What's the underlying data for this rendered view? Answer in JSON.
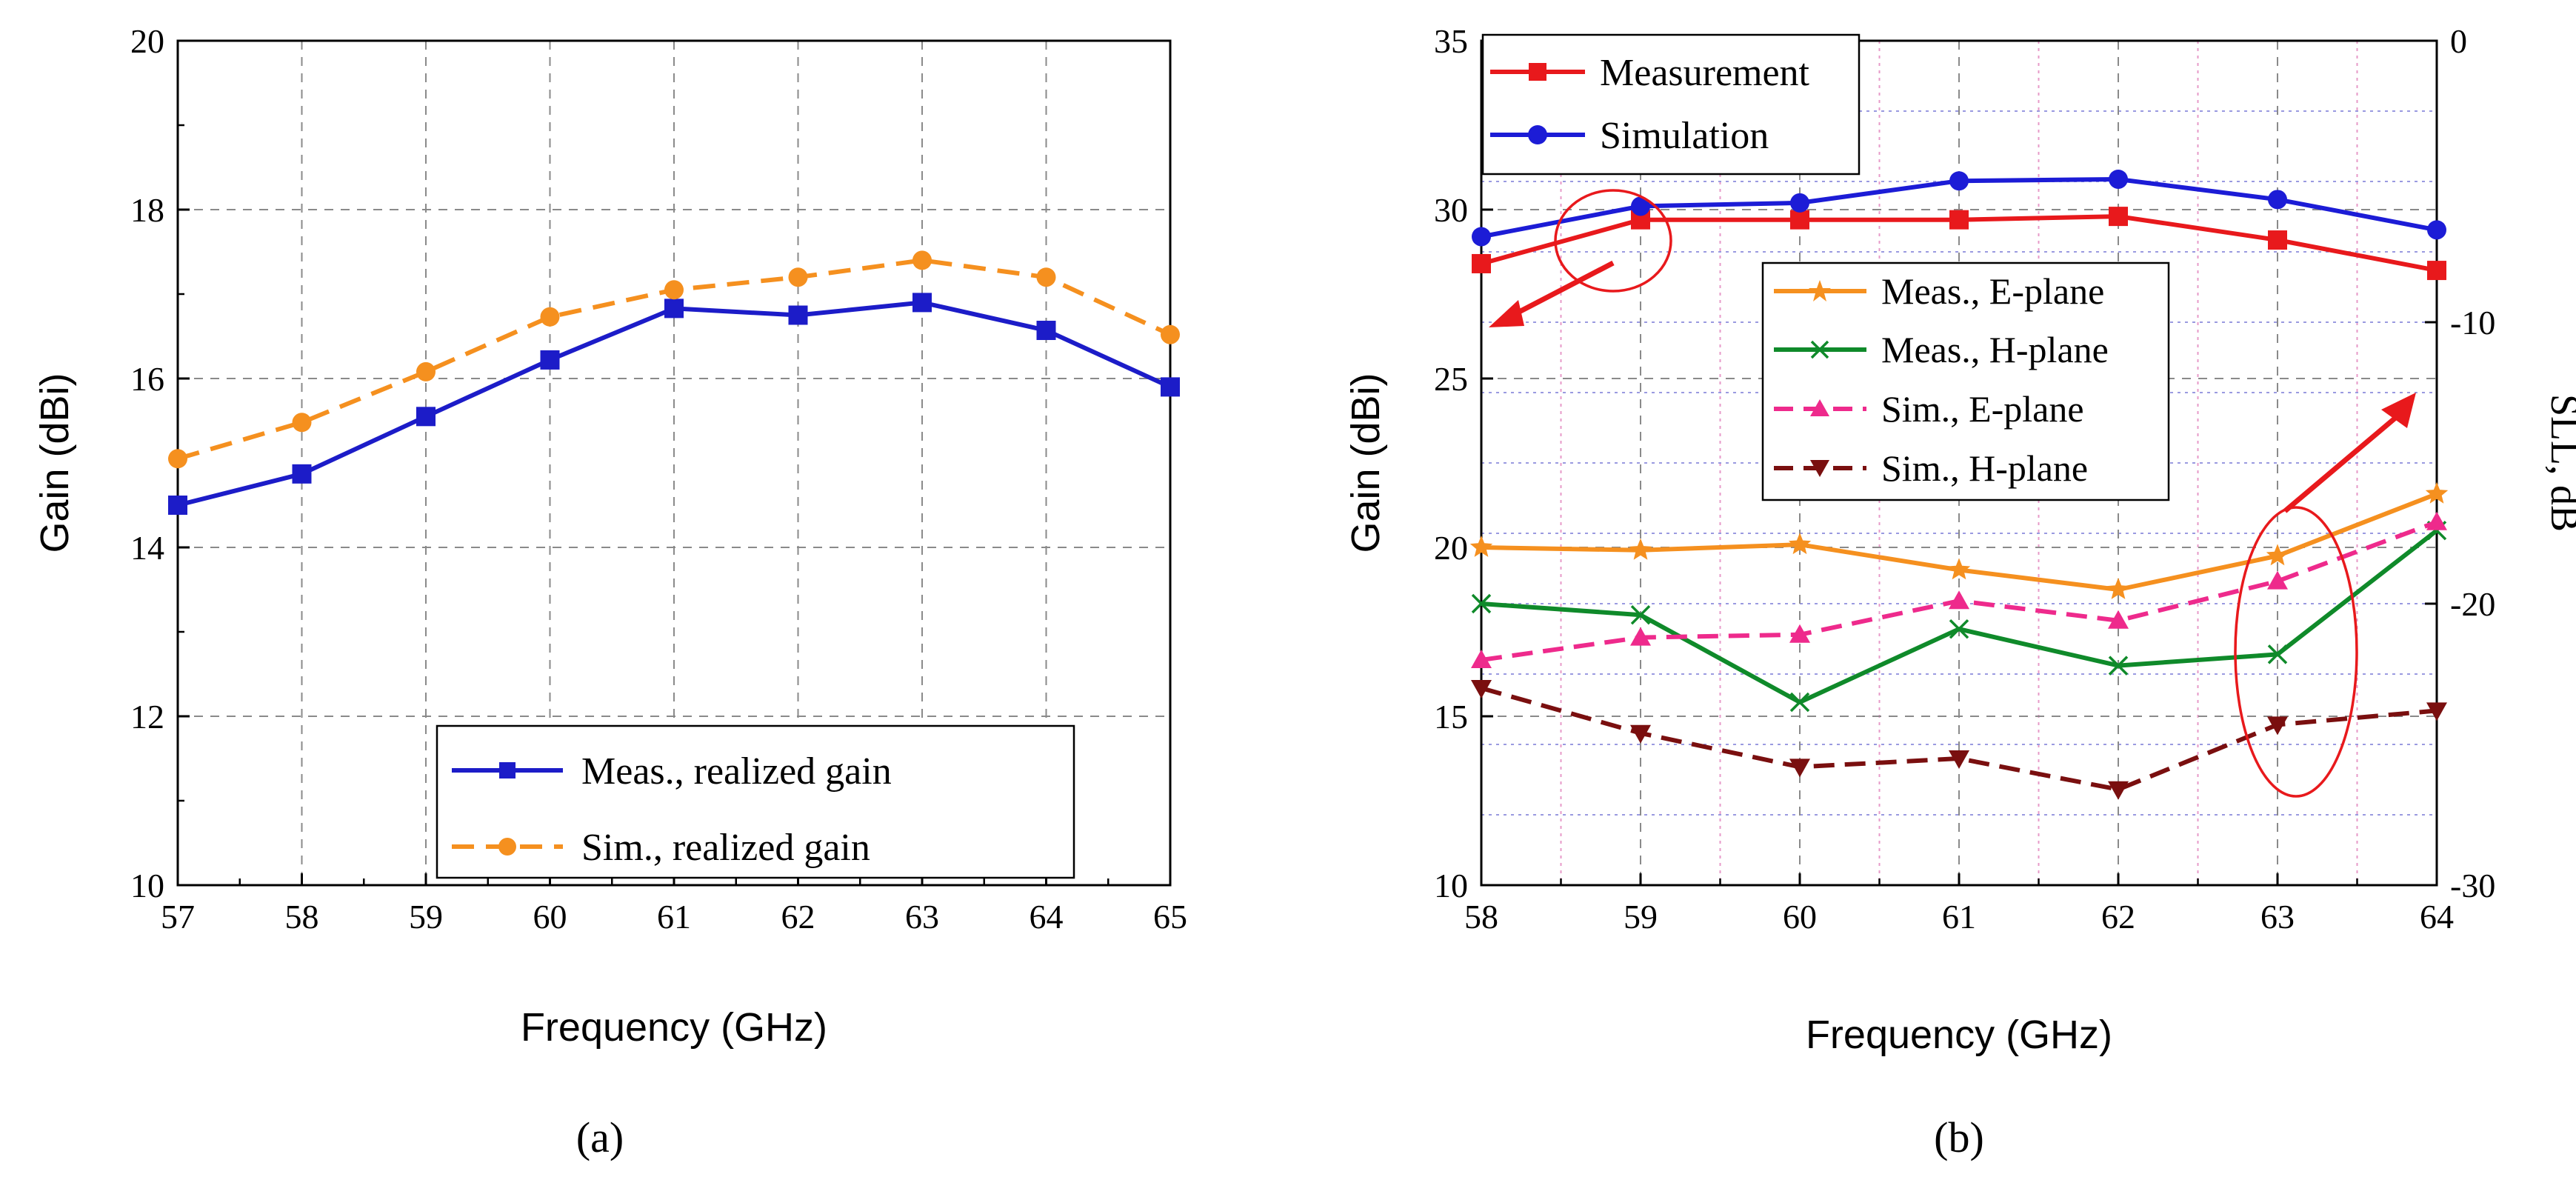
{
  "chart_data": [
    {
      "type": "line",
      "panel_label": "(a)",
      "xlabel": "Frequency (GHz)",
      "ylabel": "Gain (dBi)",
      "xlim": [
        57,
        65
      ],
      "ylim": [
        10,
        20
      ],
      "x_ticks": [
        "57",
        "58",
        "59",
        "60",
        "61",
        "62",
        "63",
        "64",
        "65"
      ],
      "y_ticks": [
        "10",
        "12",
        "14",
        "16",
        "18",
        "20"
      ],
      "grid": true,
      "legend_position": "bottom-right",
      "x": [
        57,
        58,
        59,
        60,
        61,
        62,
        63,
        64,
        65
      ],
      "series": [
        {
          "name": "Meas., realized gain",
          "color": "#1c1cc8",
          "dash": "solid",
          "marker": "square",
          "values": [
            14.5,
            14.87,
            15.55,
            16.22,
            16.83,
            16.75,
            16.9,
            16.57,
            15.9
          ]
        },
        {
          "name": "Sim., realized gain",
          "color": "#f5901f",
          "dash": "dashed",
          "marker": "circle",
          "values": [
            15.05,
            15.48,
            16.08,
            16.73,
            17.05,
            17.2,
            17.4,
            17.2,
            16.52
          ]
        }
      ]
    },
    {
      "type": "line",
      "panel_label": "(b)",
      "xlabel": "Frequency (GHz)",
      "ylabel": "Gain (dBi)",
      "ylabel_right": "SLL, dB",
      "xlim": [
        58,
        64
      ],
      "ylim": [
        10,
        35
      ],
      "ylim_right": [
        -30,
        0
      ],
      "x_ticks": [
        "58",
        "59",
        "60",
        "61",
        "62",
        "63",
        "64"
      ],
      "y_ticks": [
        "10",
        "15",
        "20",
        "25",
        "30",
        "35"
      ],
      "y_ticks_right": [
        "-30",
        "-20",
        "-10",
        "0"
      ],
      "grid": true,
      "legend_position": "top-left",
      "legend2_position": "center-left",
      "x": [
        58,
        59,
        60,
        61,
        62,
        63,
        64
      ],
      "series": [
        {
          "name": "Measurement",
          "axis": "left",
          "color": "#e8191c",
          "dash": "solid",
          "marker": "square",
          "values": [
            28.4,
            29.7,
            29.7,
            29.7,
            29.8,
            29.1,
            28.2
          ]
        },
        {
          "name": "Simulation",
          "axis": "left",
          "color": "#1c1cd6",
          "dash": "solid",
          "marker": "circle",
          "values": [
            29.2,
            30.1,
            30.2,
            30.85,
            30.9,
            30.3,
            29.4
          ]
        },
        {
          "name": "Meas., E-plane",
          "axis": "right",
          "color": "#f5901f",
          "dash": "solid",
          "marker": "star",
          "values": [
            -18.0,
            -18.1,
            -17.9,
            -18.8,
            -19.5,
            -18.3,
            -16.1
          ]
        },
        {
          "name": "Meas., H-plane",
          "axis": "right",
          "color": "#0f8a2a",
          "dash": "solid",
          "marker": "x",
          "values": [
            -20.0,
            -20.4,
            -23.5,
            -20.9,
            -22.2,
            -21.8,
            -17.4
          ]
        },
        {
          "name": "Sim., E-plane",
          "axis": "right",
          "color": "#ee2a8c",
          "dash": "dashed",
          "marker": "triangle-up",
          "values": [
            -22.0,
            -21.2,
            -21.1,
            -19.9,
            -20.6,
            -19.2,
            -17.1
          ]
        },
        {
          "name": "Sim., H-plane",
          "axis": "right",
          "color": "#7a0f0f",
          "dash": "dashed",
          "marker": "triangle-down",
          "values": [
            -23.0,
            -24.6,
            -25.8,
            -25.5,
            -26.6,
            -24.3,
            -23.8
          ]
        }
      ]
    }
  ]
}
